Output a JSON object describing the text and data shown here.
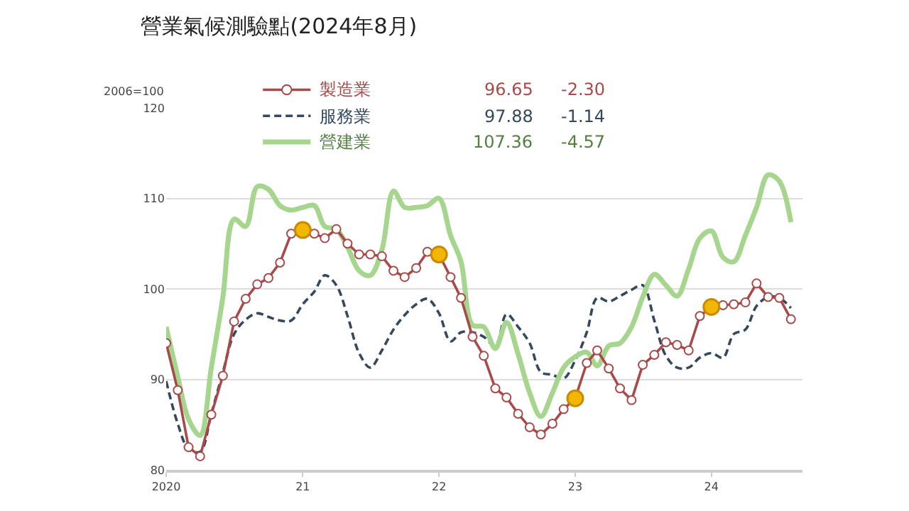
{
  "chart_data": {
    "type": "line",
    "title": "營業氣候測驗點(2024年8月)",
    "ylabel": "2006=100",
    "x": [
      "2020-01",
      "2020-02",
      "2020-03",
      "2020-04",
      "2020-05",
      "2020-06",
      "2020-07",
      "2020-08",
      "2020-09",
      "2020-10",
      "2020-11",
      "2020-12",
      "2021-01",
      "2021-02",
      "2021-03",
      "2021-04",
      "2021-05",
      "2021-06",
      "2021-07",
      "2021-08",
      "2021-09",
      "2021-10",
      "2021-11",
      "2021-12",
      "2022-01",
      "2022-02",
      "2022-03",
      "2022-04",
      "2022-05",
      "2022-06",
      "2022-07",
      "2022-08",
      "2022-09",
      "2022-10",
      "2022-11",
      "2022-12",
      "2023-01",
      "2023-02",
      "2023-03",
      "2023-04",
      "2023-05",
      "2023-06",
      "2023-07",
      "2023-08",
      "2023-09",
      "2023-10",
      "2023-11",
      "2023-12",
      "2024-01",
      "2024-02",
      "2024-03",
      "2024-04",
      "2024-05",
      "2024-06",
      "2024-07",
      "2024-08"
    ],
    "series": [
      {
        "name": "製造業",
        "color": "#a84a4a",
        "marker": "circle",
        "line_style": "solid",
        "values": [
          94.0,
          88.8,
          82.5,
          81.5,
          86.1,
          90.4,
          96.4,
          98.9,
          100.5,
          101.2,
          102.9,
          106.1,
          106.5,
          106.1,
          105.6,
          106.6,
          105.0,
          103.8,
          103.8,
          103.6,
          102.0,
          101.3,
          102.3,
          104.1,
          103.8,
          101.3,
          99.0,
          94.7,
          92.6,
          89.0,
          88.0,
          86.2,
          84.7,
          83.9,
          85.1,
          86.7,
          87.9,
          91.8,
          93.2,
          91.2,
          89.0,
          87.7,
          91.6,
          92.7,
          94.1,
          93.8,
          93.2,
          97.0,
          98.0,
          98.2,
          98.3,
          98.5,
          100.6,
          99.1,
          99.0,
          96.65
        ]
      },
      {
        "name": "服務業",
        "color": "#34495e",
        "marker": "none",
        "line_style": "dashed",
        "values": [
          89.8,
          85.1,
          82.3,
          82.0,
          86.2,
          90.8,
          95.0,
          96.6,
          97.3,
          96.9,
          96.5,
          96.5,
          98.3,
          99.7,
          101.5,
          100.4,
          97.0,
          92.9,
          91.3,
          93.2,
          95.5,
          97.1,
          98.3,
          98.9,
          97.3,
          94.2,
          95.2,
          95.2,
          94.7,
          93.7,
          97.2,
          95.8,
          94.0,
          90.8,
          90.5,
          90.1,
          92.1,
          95.2,
          99.0,
          98.6,
          99.2,
          99.9,
          100.4,
          96.5,
          92.6,
          91.3,
          91.3,
          92.4,
          92.9,
          92.4,
          95.0,
          95.5,
          98.1,
          99.1,
          99.0,
          97.88
        ]
      },
      {
        "name": "營建業",
        "color": "#a6d68e",
        "marker": "none",
        "line_style": "solid",
        "values": [
          95.8,
          90.3,
          85.6,
          83.8,
          91.3,
          99.1,
          107.7,
          106.9,
          111.3,
          111.0,
          109.2,
          108.7,
          109.0,
          109.2,
          106.9,
          106.6,
          104.6,
          102.0,
          101.5,
          104.3,
          110.8,
          109.0,
          109.0,
          109.2,
          110.0,
          105.9,
          103.0,
          96.0,
          95.8,
          93.4,
          96.3,
          92.8,
          88.5,
          85.9,
          88.5,
          91.3,
          92.5,
          93.0,
          91.5,
          93.7,
          94.0,
          95.8,
          99.1,
          101.6,
          100.4,
          99.2,
          102.2,
          105.6,
          106.4,
          103.5,
          103.0,
          105.9,
          109.0,
          112.6,
          111.9,
          107.36
        ]
      },
      {
        "type": "scatter",
        "color": "#f2b705",
        "marker": "circle",
        "x": [
          "2021-01",
          "2022-01",
          "2023-01",
          "2024-01"
        ],
        "values": [
          106.5,
          103.8,
          87.9,
          98.0
        ]
      }
    ],
    "annotations": [
      "96.65",
      "-2.30",
      "97.88",
      "-1.14",
      "107.36",
      "-4.57"
    ],
    "xlim": [
      "2020-01",
      "2024-09"
    ],
    "xticks": [
      {
        "value": "2020-01",
        "label": "2020"
      },
      {
        "value": "2021-01",
        "label": "21"
      },
      {
        "value": "2022-01",
        "label": "22"
      },
      {
        "value": "2023-01",
        "label": "23"
      },
      {
        "value": "2024-01",
        "label": "24"
      }
    ],
    "ylim": [
      80,
      120
    ],
    "yticks": [
      80,
      90,
      100,
      110,
      120
    ],
    "grid": "y",
    "legend": "top"
  }
}
